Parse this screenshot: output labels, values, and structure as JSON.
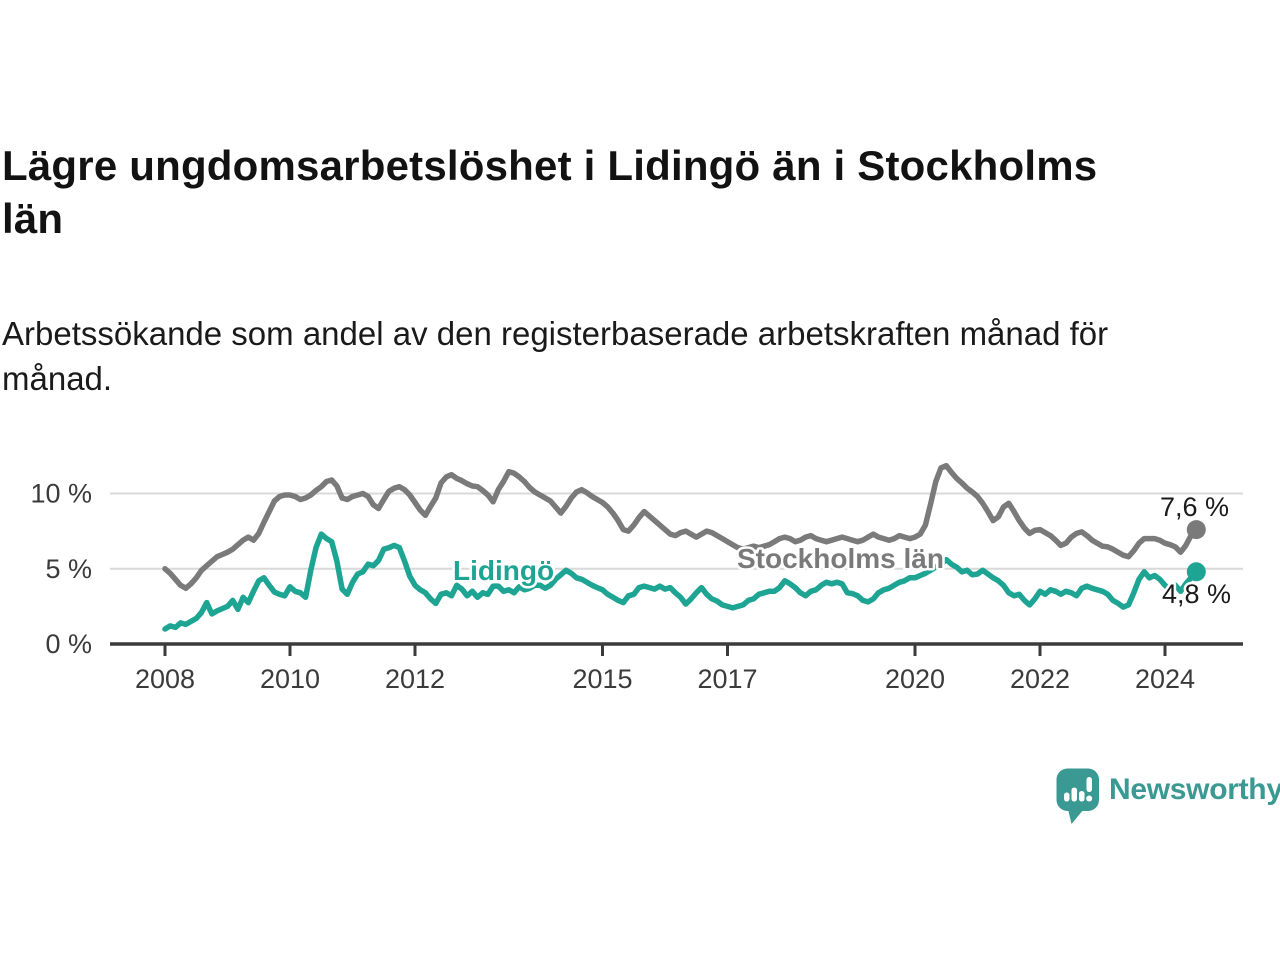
{
  "header": {
    "title": "Lägre ungdomsarbetslöshet i Lidingö än i Stockholms län",
    "subtitle": "Arbetssökande som andel av den registerbaserade arbetskraften månad för månad."
  },
  "chart_data": {
    "type": "line",
    "title": "Lägre ungdomsarbetslöshet i Lidingö än i Stockholms län",
    "subtitle": "Arbetssökande som andel av den registerbaserade arbetskraften månad för månad.",
    "unit": "%",
    "x_start": "2008-01",
    "x_end": "2024-07",
    "x_frequency": "monthly",
    "grid": true,
    "legend_position": "inline-labels",
    "y_axis": {
      "ylim": [
        0,
        12.5
      ],
      "ticks": [
        {
          "value": 0,
          "label": "0 %"
        },
        {
          "value": 5,
          "label": "5 %"
        },
        {
          "value": 10,
          "label": "10 %"
        }
      ]
    },
    "x_axis": {
      "ticks": [
        {
          "year": 2008,
          "label": "2008"
        },
        {
          "year": 2010,
          "label": "2010"
        },
        {
          "year": 2012,
          "label": "2012"
        },
        {
          "year": 2015,
          "label": "2015"
        },
        {
          "year": 2017,
          "label": "2017"
        },
        {
          "year": 2020,
          "label": "2020"
        },
        {
          "year": 2022,
          "label": "2022"
        },
        {
          "year": 2024,
          "label": "2024"
        }
      ]
    },
    "series": [
      {
        "name": "Stockholms län",
        "color": "#7a7a7a",
        "end_label": "7,6 %",
        "end_value": 7.6,
        "values": [
          5.0,
          4.7,
          4.3,
          3.9,
          3.7,
          4.0,
          4.4,
          4.9,
          5.2,
          5.5,
          5.8,
          5.95,
          6.1,
          6.3,
          6.6,
          6.9,
          7.1,
          6.9,
          7.35,
          8.1,
          8.8,
          9.5,
          9.8,
          9.9,
          9.9,
          9.8,
          9.6,
          9.7,
          9.9,
          10.2,
          10.45,
          10.8,
          10.9,
          10.5,
          9.7,
          9.6,
          9.8,
          9.9,
          10.0,
          9.8,
          9.25,
          9.0,
          9.6,
          10.15,
          10.35,
          10.45,
          10.25,
          9.9,
          9.4,
          8.9,
          8.55,
          9.15,
          9.7,
          10.7,
          11.1,
          11.25,
          11.0,
          10.85,
          10.65,
          10.5,
          10.45,
          10.2,
          9.9,
          9.45,
          10.25,
          10.8,
          11.45,
          11.35,
          11.1,
          10.8,
          10.4,
          10.1,
          9.9,
          9.7,
          9.5,
          9.1,
          8.7,
          9.15,
          9.7,
          10.1,
          10.25,
          10.05,
          9.8,
          9.6,
          9.4,
          9.1,
          8.7,
          8.2,
          7.6,
          7.5,
          7.9,
          8.4,
          8.8,
          8.5,
          8.2,
          7.9,
          7.6,
          7.3,
          7.2,
          7.4,
          7.5,
          7.3,
          7.1,
          7.3,
          7.5,
          7.4,
          7.2,
          7.0,
          6.8,
          6.6,
          6.4,
          6.3,
          6.4,
          6.5,
          6.4,
          6.5,
          6.6,
          6.8,
          7.0,
          7.1,
          7.0,
          6.8,
          6.9,
          7.1,
          7.2,
          7.0,
          6.9,
          6.8,
          6.9,
          7.0,
          7.1,
          7.0,
          6.9,
          6.8,
          6.9,
          7.1,
          7.3,
          7.1,
          7.0,
          6.9,
          7.0,
          7.2,
          7.1,
          7.0,
          7.1,
          7.3,
          7.9,
          9.3,
          10.8,
          11.7,
          11.85,
          11.4,
          11.0,
          10.7,
          10.35,
          10.1,
          9.8,
          9.35,
          8.8,
          8.2,
          8.45,
          9.1,
          9.35,
          8.8,
          8.2,
          7.7,
          7.35,
          7.55,
          7.6,
          7.4,
          7.2,
          6.9,
          6.55,
          6.7,
          7.1,
          7.35,
          7.45,
          7.2,
          6.9,
          6.7,
          6.5,
          6.45,
          6.3,
          6.1,
          5.9,
          5.8,
          6.2,
          6.7,
          7.0,
          7.0,
          7.0,
          6.9,
          6.7,
          6.6,
          6.45,
          6.1,
          6.55,
          7.2,
          7.6
        ]
      },
      {
        "name": "Lidingö",
        "color": "#1ea493",
        "end_label": "4,8 %",
        "end_value": 4.8,
        "values": [
          1.0,
          1.2,
          1.1,
          1.4,
          1.3,
          1.5,
          1.7,
          2.1,
          2.75,
          2.0,
          2.2,
          2.35,
          2.5,
          2.9,
          2.3,
          3.1,
          2.75,
          3.5,
          4.2,
          4.4,
          3.9,
          3.45,
          3.3,
          3.2,
          3.8,
          3.5,
          3.4,
          3.1,
          4.9,
          6.4,
          7.3,
          7.0,
          6.8,
          5.5,
          3.65,
          3.3,
          4.1,
          4.65,
          4.8,
          5.3,
          5.2,
          5.55,
          6.3,
          6.4,
          6.55,
          6.4,
          5.5,
          4.5,
          3.9,
          3.6,
          3.4,
          3.0,
          2.7,
          3.3,
          3.4,
          3.2,
          3.9,
          3.65,
          3.2,
          3.5,
          3.1,
          3.4,
          3.3,
          3.85,
          3.85,
          3.5,
          3.6,
          3.4,
          3.8,
          3.6,
          3.7,
          3.9,
          3.9,
          3.7,
          3.9,
          4.3,
          4.6,
          4.9,
          4.7,
          4.4,
          4.3,
          4.1,
          3.9,
          3.75,
          3.6,
          3.3,
          3.1,
          2.9,
          2.75,
          3.2,
          3.3,
          3.75,
          3.85,
          3.75,
          3.65,
          3.85,
          3.65,
          3.75,
          3.4,
          3.1,
          2.65,
          3.0,
          3.4,
          3.75,
          3.3,
          3.0,
          2.85,
          2.6,
          2.5,
          2.4,
          2.5,
          2.6,
          2.9,
          3.0,
          3.3,
          3.4,
          3.5,
          3.5,
          3.75,
          4.2,
          4.0,
          3.75,
          3.4,
          3.2,
          3.5,
          3.6,
          3.9,
          4.1,
          4.0,
          4.1,
          4.0,
          3.4,
          3.35,
          3.2,
          2.9,
          2.8,
          3.0,
          3.4,
          3.6,
          3.7,
          3.9,
          4.1,
          4.2,
          4.4,
          4.4,
          4.55,
          4.7,
          4.9,
          5.1,
          5.3,
          5.6,
          5.3,
          5.1,
          4.8,
          4.9,
          4.6,
          4.65,
          4.9,
          4.65,
          4.4,
          4.2,
          3.9,
          3.4,
          3.2,
          3.3,
          2.9,
          2.6,
          3.0,
          3.5,
          3.3,
          3.6,
          3.5,
          3.3,
          3.5,
          3.4,
          3.2,
          3.7,
          3.85,
          3.7,
          3.6,
          3.5,
          3.3,
          2.9,
          2.7,
          2.45,
          2.6,
          3.4,
          4.3,
          4.8,
          4.4,
          4.55,
          4.3,
          3.9,
          3.6,
          3.9,
          3.5,
          4.0,
          4.4,
          4.8
        ]
      }
    ]
  },
  "footer": {
    "brand": "Newsworthy",
    "logo_color": "#3a9a93"
  }
}
